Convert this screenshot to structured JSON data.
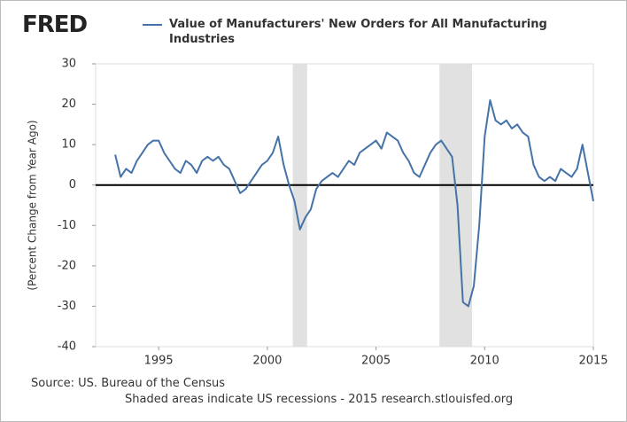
{
  "logo": "FRED",
  "chart_data": {
    "type": "line",
    "y_label": "(Percent Change from Year Ago)",
    "source": "Source: US. Bureau of the Census",
    "note": "Shaded areas indicate US recessions - 2015 research.stlouisfed.org",
    "xlim": [
      1992.1,
      2015
    ],
    "xticks": [
      1995,
      2000,
      2005,
      2010,
      2015
    ],
    "ylim": [
      -40,
      30
    ],
    "yticks": [
      -40,
      -30,
      -20,
      -10,
      0,
      10,
      20,
      30
    ],
    "recessions": [
      [
        2001.17,
        2001.83
      ],
      [
        2007.92,
        2009.42
      ]
    ],
    "x": [
      1993,
      1993.25,
      1993.5,
      1993.75,
      1994,
      1994.25,
      1994.5,
      1994.75,
      1995,
      1995.25,
      1995.5,
      1995.75,
      1996,
      1996.25,
      1996.5,
      1996.75,
      1997,
      1997.25,
      1997.5,
      1997.75,
      1998,
      1998.25,
      1998.5,
      1998.75,
      1999,
      1999.25,
      1999.5,
      1999.75,
      2000,
      2000.25,
      2000.5,
      2000.75,
      2001,
      2001.25,
      2001.5,
      2001.75,
      2002,
      2002.25,
      2002.5,
      2002.75,
      2003,
      2003.25,
      2003.5,
      2003.75,
      2004,
      2004.25,
      2004.5,
      2004.75,
      2005,
      2005.25,
      2005.5,
      2005.75,
      2006,
      2006.25,
      2006.5,
      2006.75,
      2007,
      2007.25,
      2007.5,
      2007.75,
      2008,
      2008.25,
      2008.5,
      2008.75,
      2009,
      2009.25,
      2009.5,
      2009.75,
      2010,
      2010.25,
      2010.5,
      2010.75,
      2011,
      2011.25,
      2011.5,
      2011.75,
      2012,
      2012.25,
      2012.5,
      2012.75,
      2013,
      2013.25,
      2013.5,
      2013.75,
      2014,
      2014.25,
      2014.5,
      2014.75,
      2015
    ],
    "series": [
      {
        "name": "Value of Manufacturers' New Orders for All Manufacturing Industries",
        "color": "#4572a7",
        "values": [
          7.5,
          2,
          4,
          3,
          6,
          8,
          10,
          11,
          11,
          8,
          6,
          4,
          3,
          6,
          5,
          3,
          6,
          7,
          6,
          7,
          5,
          4,
          1,
          -2,
          -1,
          1,
          3,
          5,
          6,
          8,
          12,
          5,
          0,
          -4,
          -11,
          -8,
          -6,
          -1,
          1,
          2,
          3,
          2,
          4,
          6,
          5,
          8,
          9,
          10,
          11,
          9,
          13,
          12,
          11,
          8,
          6,
          3,
          2,
          5,
          8,
          10,
          11,
          9,
          7,
          -5,
          -29,
          -30,
          -25,
          -10,
          12,
          21,
          16,
          15,
          16,
          14,
          15,
          13,
          12,
          5,
          2,
          1,
          2,
          1,
          4,
          3,
          2,
          4,
          10,
          3,
          -4
        ]
      }
    ]
  }
}
